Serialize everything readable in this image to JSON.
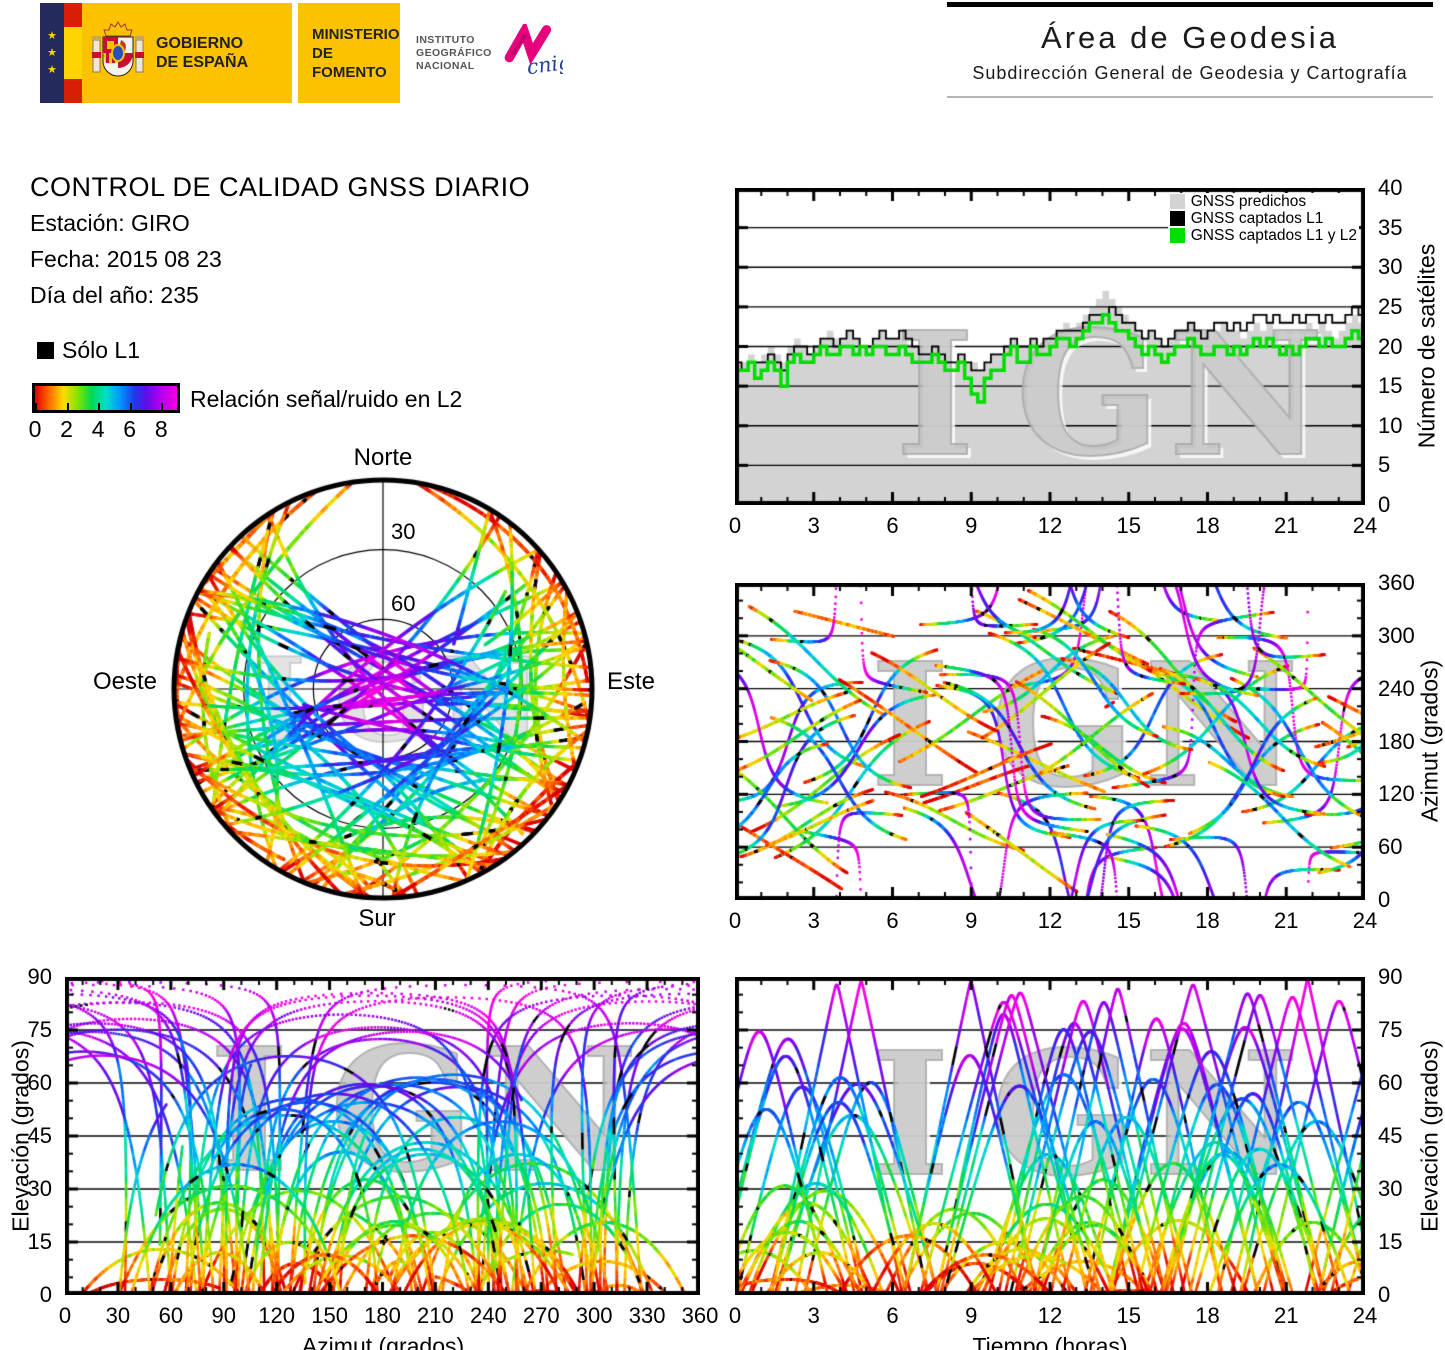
{
  "header": {
    "gobierno_line1": "GOBIERNO",
    "gobierno_line2": "DE ESPAÑA",
    "ministerio_line1": "MINISTERIO",
    "ministerio_line2": "DE FOMENTO",
    "instituto": [
      "INSTITUTO",
      "GEOGRÁFICO",
      "NACIONAL"
    ],
    "cnig": "cnig",
    "area_title": "Área de Geodesia",
    "area_subtitle": "Subdirección General de Geodesia y Cartografía"
  },
  "report": {
    "title": "CONTROL DE CALIDAD GNSS DIARIO",
    "station": "Estación: GIRO",
    "date": "Fecha: 2015 08 23",
    "doy": "Día del año: 235",
    "solo_l1": "Sólo L1",
    "colorbar_label": "Relación señal/ruido en L2",
    "colorbar_ticks": [
      0,
      2,
      4,
      6,
      8
    ],
    "colorbar_max": 9
  },
  "watermark": "IGN",
  "skyplot": {
    "north": "Norte",
    "south": "Sur",
    "west": "Oeste",
    "east": "Este",
    "ring_labels": [
      "30",
      "60"
    ],
    "ring_elevations_deg": [
      30,
      60
    ]
  },
  "charts": {
    "satellites": {
      "ylabel": "Número de satélites",
      "x_ticks": [
        0,
        3,
        6,
        9,
        12,
        15,
        18,
        21,
        24
      ],
      "y_ticks": [
        0,
        5,
        10,
        15,
        20,
        25,
        30,
        35,
        40
      ],
      "legend": [
        {
          "label": "GNSS predichos",
          "color": "#d3d3d3"
        },
        {
          "label": "GNSS captados L1",
          "color": "#000000"
        },
        {
          "label": "GNSS captados L1 y L2",
          "color": "#00dd00"
        }
      ]
    },
    "azimuth": {
      "ylabel": "Azimut (grados)",
      "x_ticks": [
        0,
        3,
        6,
        9,
        12,
        15,
        18,
        21,
        24
      ],
      "y_ticks": [
        0,
        60,
        120,
        180,
        240,
        300,
        360
      ]
    },
    "elev_az": {
      "xlabel": "Azimut (grados)",
      "ylabel": "Elevación (grados)",
      "x_ticks": [
        0,
        30,
        60,
        90,
        120,
        150,
        180,
        210,
        240,
        270,
        300,
        330,
        360
      ],
      "y_ticks": [
        0,
        15,
        30,
        45,
        60,
        75,
        90
      ]
    },
    "elev_time": {
      "xlabel": "Tiempo (horas)",
      "ylabel": "Elevación (grados)",
      "x_ticks": [
        0,
        3,
        6,
        9,
        12,
        15,
        18,
        21,
        24
      ],
      "y_ticks": [
        0,
        15,
        30,
        45,
        60,
        75,
        90
      ]
    }
  },
  "colormap": [
    [
      0.0,
      221,
      0,
      0
    ],
    [
      0.1,
      255,
      106,
      0
    ],
    [
      0.2,
      255,
      219,
      0
    ],
    [
      0.3,
      132,
      228,
      0
    ],
    [
      0.4,
      0,
      216,
      84
    ],
    [
      0.5,
      0,
      224,
      201
    ],
    [
      0.6,
      0,
      150,
      255
    ],
    [
      0.7,
      30,
      58,
      234
    ],
    [
      0.78,
      92,
      14,
      234
    ],
    [
      0.87,
      170,
      0,
      240
    ],
    [
      1.0,
      245,
      0,
      225
    ]
  ],
  "tracks_model": {
    "seed": 11,
    "n_passes": 95,
    "hole": {
      "u": 0.0,
      "v": 0.64,
      "r": 0.34
    },
    "snr_exponent": 0.8,
    "snr_max": 9,
    "black_dot_rate": 0.004
  },
  "chart_data": [
    {
      "id": "satellites_visible",
      "type": "line",
      "style": "step",
      "title": "",
      "ylabel": "Número de satélites",
      "x_range_hours": [
        0,
        24
      ],
      "ylim": [
        0,
        40
      ],
      "x_step_hours": 0.25,
      "gridlines_y": [
        5,
        10,
        15,
        20,
        25,
        30,
        35
      ],
      "series": [
        {
          "name": "GNSS predichos",
          "color": "#d3d3d3",
          "fill": true,
          "values": [
            18,
            18,
            19,
            18,
            19,
            20,
            19,
            18,
            20,
            21,
            20,
            19,
            20,
            21,
            22,
            21,
            21,
            22,
            21,
            20,
            20,
            21,
            22,
            21,
            21,
            22,
            21,
            20,
            20,
            19,
            20,
            19,
            19,
            18,
            19,
            18,
            18,
            17,
            18,
            19,
            19,
            20,
            21,
            20,
            20,
            21,
            20,
            21,
            21,
            22,
            23,
            22,
            23,
            24,
            25,
            26,
            27,
            26,
            25,
            24,
            23,
            22,
            21,
            22,
            21,
            20,
            21,
            22,
            22,
            23,
            22,
            21,
            21,
            22,
            23,
            22,
            22,
            21,
            22,
            23,
            22,
            23,
            22,
            21,
            22,
            21,
            22,
            23,
            22,
            23,
            22,
            21,
            22,
            23,
            24,
            23
          ]
        },
        {
          "name": "GNSS captados L1",
          "color": "#000000",
          "fill": false,
          "values": [
            18,
            17,
            18,
            18,
            18,
            19,
            18,
            17,
            19,
            20,
            20,
            19,
            20,
            21,
            21,
            20,
            21,
            22,
            21,
            20,
            20,
            21,
            22,
            21,
            21,
            22,
            21,
            20,
            19,
            19,
            20,
            19,
            18,
            18,
            19,
            18,
            17,
            17,
            18,
            19,
            19,
            20,
            21,
            20,
            20,
            21,
            20,
            21,
            21,
            22,
            22,
            22,
            22,
            23,
            24,
            24,
            24,
            25,
            24,
            23,
            23,
            22,
            21,
            22,
            21,
            20,
            21,
            22,
            22,
            23,
            22,
            21,
            22,
            23,
            23,
            22,
            23,
            22,
            23,
            24,
            24,
            23,
            24,
            23,
            23,
            24,
            23,
            24,
            24,
            23,
            24,
            23,
            23,
            24,
            25,
            24
          ]
        },
        {
          "name": "GNSS captados L1 y L2",
          "color": "#00dd00",
          "fill": false,
          "values": [
            17,
            17,
            18,
            16,
            17,
            18,
            17,
            15,
            18,
            19,
            18,
            18,
            19,
            20,
            19,
            19,
            20,
            20,
            19,
            20,
            19,
            20,
            20,
            19,
            19,
            20,
            19,
            18,
            18,
            18,
            19,
            18,
            17,
            17,
            18,
            16,
            14,
            13,
            16,
            17,
            17,
            19,
            20,
            18,
            18,
            20,
            19,
            19,
            20,
            21,
            21,
            20,
            21,
            22,
            23,
            23,
            24,
            23,
            22,
            22,
            21,
            20,
            19,
            20,
            19,
            18,
            19,
            20,
            20,
            21,
            20,
            19,
            19,
            20,
            20,
            19,
            20,
            19,
            20,
            21,
            20,
            21,
            20,
            19,
            20,
            19,
            20,
            21,
            21,
            20,
            21,
            20,
            20,
            21,
            22,
            21
          ]
        }
      ]
    },
    {
      "id": "skyplot",
      "type": "scatter",
      "projection": "polar-sky",
      "cardinals": [
        "Norte",
        "Este",
        "Sur",
        "Oeste"
      ],
      "elevation_rings_deg": [
        30,
        60
      ],
      "value_encoding": "color = relación señal/ruido en L2 (escala 0-9, arcoíris rojo→magenta); puntos negros = sólo L1",
      "content": "trayectorias de satélites GNSS durante 24 h; hueco sin trayectorias hacia el Norte"
    },
    {
      "id": "azimuth_vs_time",
      "type": "scatter",
      "xlim": [
        0,
        24
      ],
      "ylim": [
        0,
        360
      ],
      "ylabel": "Azimut (grados)",
      "gridlines_y": [
        60,
        120,
        180,
        240,
        300
      ],
      "value_encoding": "color = relación señal/ruido en L2 (0-9)"
    },
    {
      "id": "elevation_vs_azimuth",
      "type": "scatter",
      "xlim": [
        0,
        360
      ],
      "ylim": [
        0,
        90
      ],
      "xlabel": "Azimut (grados)",
      "ylabel": "Elevación (grados)",
      "gridlines_y": [
        15,
        30,
        45,
        60,
        75
      ],
      "value_encoding": "color = relación señal/ruido en L2 (0-9)"
    },
    {
      "id": "elevation_vs_time",
      "type": "scatter",
      "xlim": [
        0,
        24
      ],
      "ylim": [
        0,
        90
      ],
      "xlabel": "Tiempo (horas)",
      "ylabel": "Elevación (grados)",
      "gridlines_y": [
        15,
        30,
        45,
        60,
        75
      ],
      "value_encoding": "color = relación señal/ruido en L2 (0-9)"
    }
  ]
}
